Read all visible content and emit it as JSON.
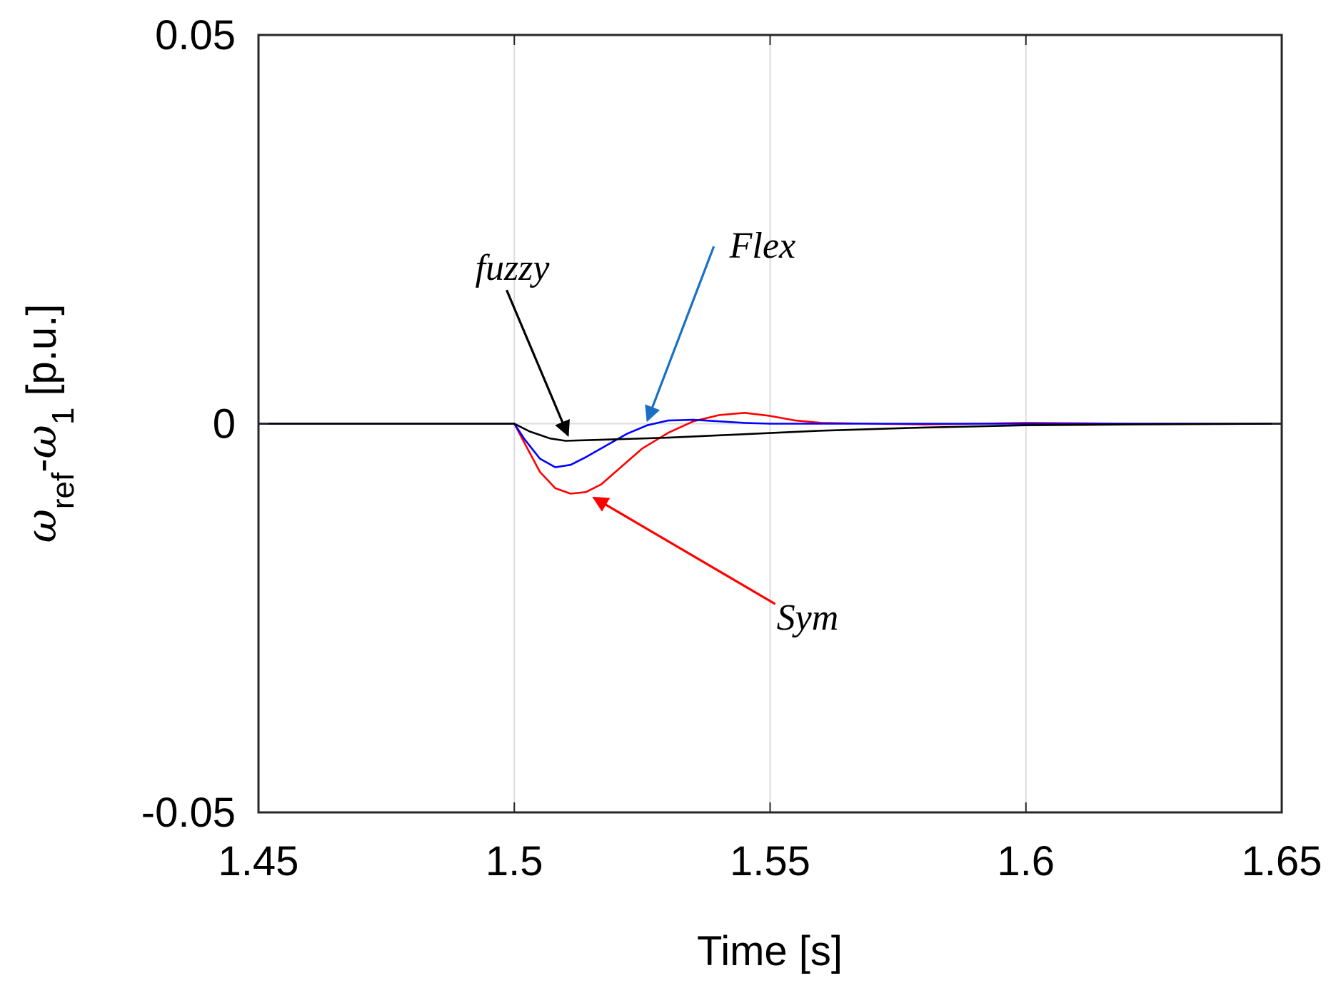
{
  "chart_data": {
    "type": "line",
    "title": "",
    "xlabel": "Time [s]",
    "ylabel": {
      "omega": "ω",
      "sub_ref": "ref",
      "dash": "-",
      "sub_1": "1",
      "unit": " [p.u.]"
    },
    "xlim": [
      1.45,
      1.65
    ],
    "ylim": [
      -0.05,
      0.05
    ],
    "xticks": [
      1.45,
      1.5,
      1.55,
      1.6,
      1.65
    ],
    "xtick_labels": [
      "1.45",
      "1.5",
      "1.55",
      "1.6",
      "1.65"
    ],
    "yticks": [
      -0.05,
      0,
      0.05
    ],
    "ytick_labels": [
      "-0.05",
      "0",
      "0.05"
    ],
    "grid": true,
    "series": [
      {
        "name": "Sym",
        "color": "#ff0000",
        "x": [
          1.45,
          1.5,
          1.502,
          1.505,
          1.508,
          1.511,
          1.514,
          1.517,
          1.521,
          1.525,
          1.53,
          1.535,
          1.54,
          1.545,
          1.55,
          1.555,
          1.56,
          1.57,
          1.58,
          1.6,
          1.62,
          1.65
        ],
        "y": [
          0,
          0,
          -0.0025,
          -0.0062,
          -0.0083,
          -0.009,
          -0.0088,
          -0.0078,
          -0.0055,
          -0.0032,
          -0.0012,
          0.0003,
          0.0011,
          0.0014,
          0.001,
          0.0004,
          0.0001,
          0,
          -0.0001,
          0.0001,
          0,
          0
        ]
      },
      {
        "name": "Flex",
        "color": "#0000ff",
        "x": [
          1.45,
          1.5,
          1.502,
          1.505,
          1.508,
          1.511,
          1.514,
          1.518,
          1.522,
          1.526,
          1.53,
          1.535,
          1.54,
          1.545,
          1.55,
          1.56,
          1.57,
          1.6,
          1.65
        ],
        "y": [
          0,
          0,
          -0.002,
          -0.0045,
          -0.0056,
          -0.0053,
          -0.0043,
          -0.0028,
          -0.0013,
          -0.0002,
          0.0004,
          0.0005,
          0.0003,
          0.0001,
          0,
          0,
          0,
          0,
          0
        ]
      },
      {
        "name": "fuzzy",
        "color": "#000000",
        "x": [
          1.45,
          1.5,
          1.503,
          1.507,
          1.51,
          1.515,
          1.52,
          1.53,
          1.54,
          1.55,
          1.56,
          1.58,
          1.6,
          1.62,
          1.65
        ],
        "y": [
          0,
          0,
          -0.001,
          -0.0019,
          -0.0022,
          -0.0021,
          -0.002,
          -0.0018,
          -0.0015,
          -0.0012,
          -0.0009,
          -0.0005,
          -0.0002,
          -0.0001,
          0
        ]
      }
    ],
    "annotations": [
      {
        "text": "fuzzy",
        "color": "#000000",
        "arrow_color": "#000000",
        "from": [
          1.4985,
          0.0172
        ],
        "to": [
          1.5105,
          -0.0015
        ]
      },
      {
        "text": "Flex",
        "color": "#000000",
        "arrow_color": "#1a6fc4",
        "from": [
          1.539,
          0.0228
        ],
        "to": [
          1.526,
          0.0004
        ]
      },
      {
        "text": "Sym",
        "color": "#000000",
        "arrow_color": "#ff0000",
        "from": [
          1.551,
          -0.0232
        ],
        "to": [
          1.5155,
          -0.0095
        ]
      }
    ]
  }
}
